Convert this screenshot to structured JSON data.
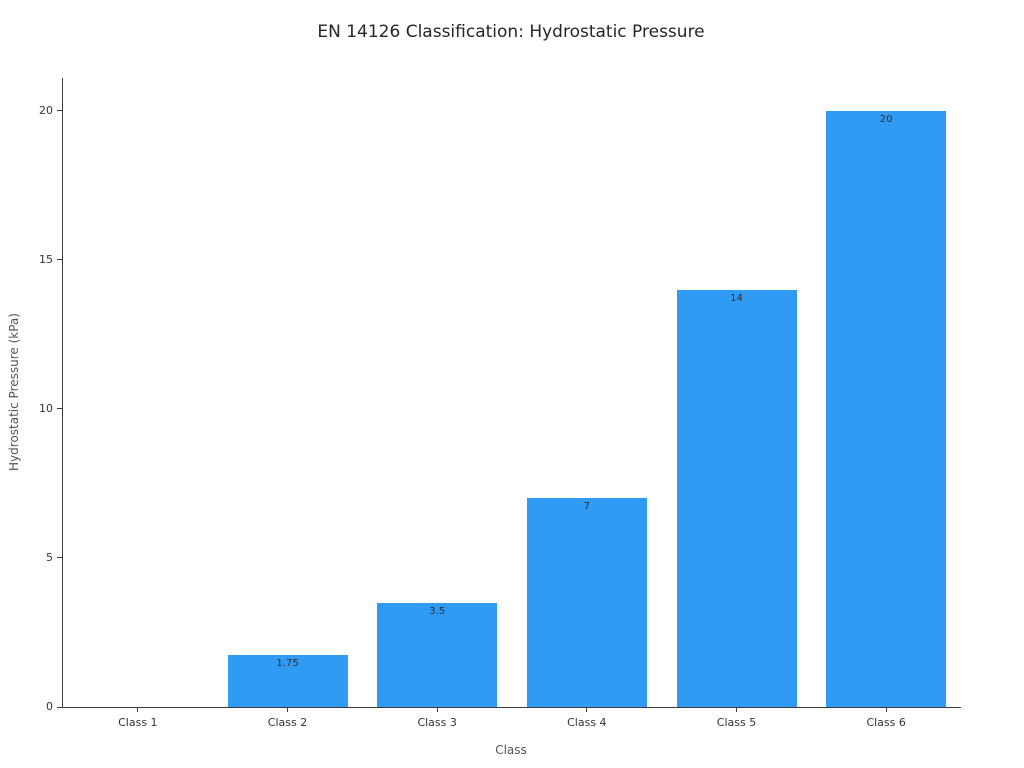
{
  "chart_data": {
    "type": "bar",
    "title": "EN 14126 Classification: Hydrostatic Pressure",
    "xlabel": "Class",
    "ylabel": "Hydrostatic Pressure (kPa)",
    "categories": [
      "Class 1",
      "Class 2",
      "Class 3",
      "Class 4",
      "Class 5",
      "Class 6"
    ],
    "values": [
      0,
      1.75,
      3.5,
      7,
      14,
      20
    ],
    "bar_labels": [
      "",
      "1.75",
      "3.5",
      "7",
      "14",
      "20"
    ],
    "yticks": [
      0,
      5,
      10,
      15,
      20
    ],
    "ylim": [
      0,
      21.1
    ],
    "bar_color": "#2f9bf5",
    "grid": false,
    "legend": false
  }
}
